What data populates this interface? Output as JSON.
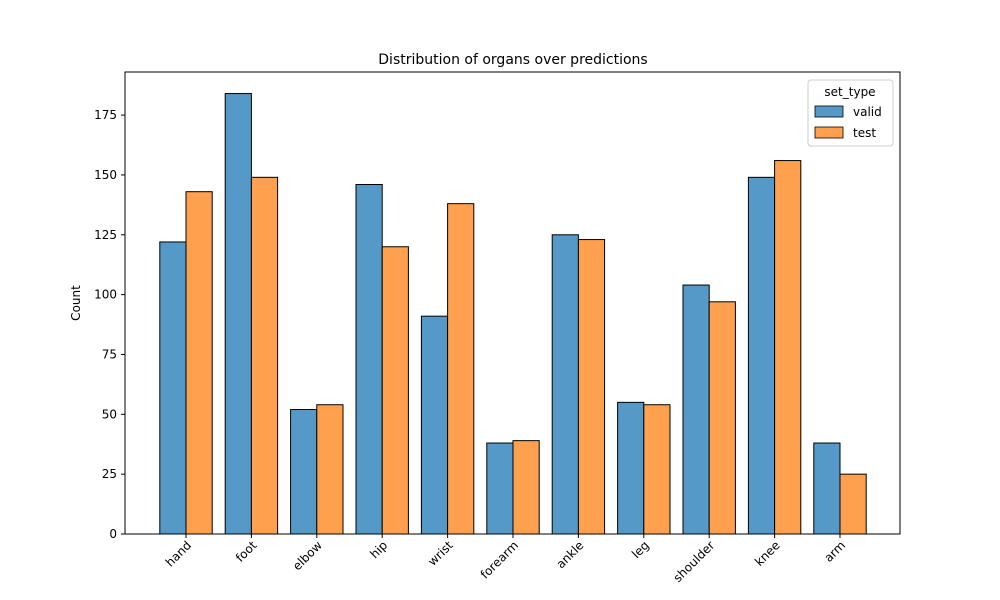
{
  "chart_data": {
    "type": "bar",
    "title": "Distribution of organs over predictions",
    "xlabel": "",
    "ylabel": "Count",
    "categories": [
      "hand",
      "foot",
      "elbow",
      "hip",
      "wrist",
      "forearm",
      "ankle",
      "leg",
      "shoulder",
      "knee",
      "arm"
    ],
    "series": [
      {
        "name": "valid",
        "color": "#5599c8",
        "values": [
          122,
          184,
          52,
          146,
          91,
          38,
          125,
          55,
          104,
          149,
          38
        ]
      },
      {
        "name": "test",
        "color": "#ffa04f",
        "values": [
          143,
          149,
          54,
          120,
          138,
          39,
          123,
          54,
          97,
          156,
          25
        ]
      }
    ],
    "ylim": [
      0,
      193
    ],
    "yticks": [
      0,
      25,
      50,
      75,
      100,
      125,
      150,
      175
    ],
    "grid": false,
    "legend": {
      "title": "set_type",
      "placement": "upper-right"
    }
  }
}
